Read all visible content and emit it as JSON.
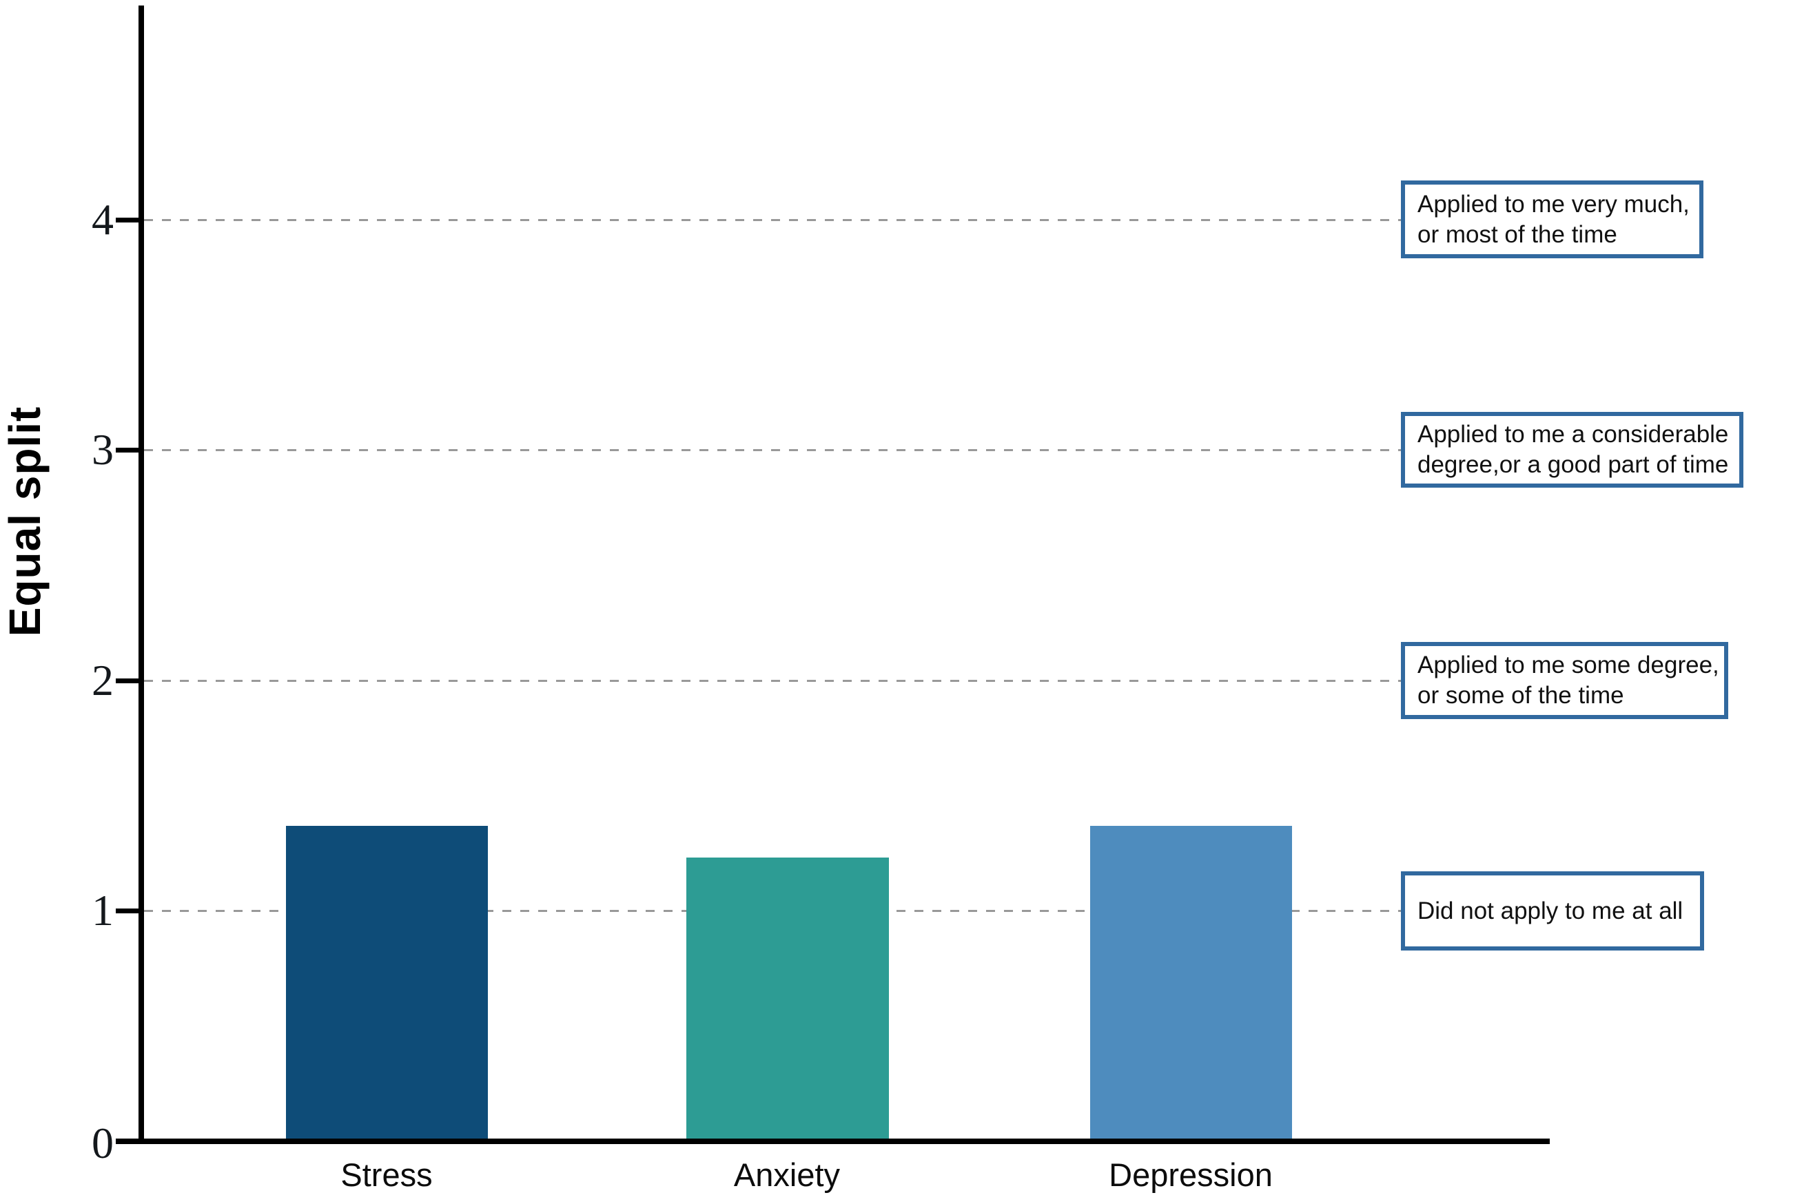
{
  "chart_data": {
    "type": "bar",
    "title": "",
    "categories": [
      "Stress",
      "Anxiety",
      "Depression"
    ],
    "values": [
      1.37,
      1.23,
      1.37
    ],
    "bar_colors": [
      "#0e4c78",
      "#2d9c94",
      "#4e8cbe"
    ],
    "xlabel": "",
    "ylabel": "Equal split",
    "ylim": [
      0,
      4.9
    ],
    "yticks": [
      0,
      1,
      2,
      3,
      4
    ],
    "ytick_labels_desc": [
      "4",
      "3",
      "2",
      "1"
    ],
    "ytick_label_zero": "0",
    "grid": {
      "axis": "y",
      "style": "dashed",
      "color": "#999999",
      "at": [
        1,
        2,
        3,
        4
      ]
    },
    "legend": "none",
    "annotation_border_color": "#31699f",
    "annotations": [
      {
        "y": 4,
        "line1": "Applied to me very much,",
        "line2": "or most of the time"
      },
      {
        "y": 3,
        "line1": "Applied to me a considerable",
        "line2": "degree,or a good part of time"
      },
      {
        "y": 2,
        "line1": "Applied to me some degree,",
        "line2": "or some of the time"
      },
      {
        "y": 1,
        "line1": "Did not apply to me at all",
        "line2": ""
      }
    ]
  }
}
